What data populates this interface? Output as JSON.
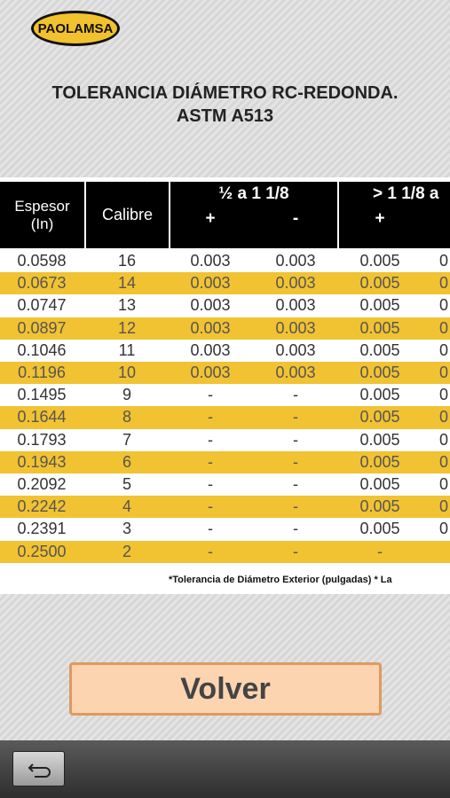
{
  "logo": "PAOLAMSA",
  "title": [
    "TOLERANCIA DIÁMETRO RC-REDONDA.",
    "ASTM A513"
  ],
  "table": {
    "headers": {
      "espesor": "Espesor\n(In)",
      "calibre": "Calibre",
      "group1": "½ a  1 1/8",
      "group1_plus": "+",
      "group1_minus": "-",
      "group2": "> 1 1/8 a",
      "group2_plus": "+"
    },
    "rows": [
      [
        "0.0598",
        "16",
        "0.003",
        "0.003",
        "0.005",
        "0"
      ],
      [
        "0.0673",
        "14",
        "0.003",
        "0.003",
        "0.005",
        "0"
      ],
      [
        "0.0747",
        "13",
        "0.003",
        "0.003",
        "0.005",
        "0"
      ],
      [
        "0.0897",
        "12",
        "0.003",
        "0.003",
        "0.005",
        "0"
      ],
      [
        "0.1046",
        "11",
        "0.003",
        "0.003",
        "0.005",
        "0"
      ],
      [
        "0.1196",
        "10",
        "0.003",
        "0.003",
        "0.005",
        "0"
      ],
      [
        "0.1495",
        "9",
        "-",
        "-",
        "0.005",
        "0"
      ],
      [
        "0.1644",
        "8",
        "-",
        "-",
        "0.005",
        "0"
      ],
      [
        "0.1793",
        "7",
        "-",
        "-",
        "0.005",
        "0"
      ],
      [
        "0.1943",
        "6",
        "-",
        "-",
        "0.005",
        "0"
      ],
      [
        "0.2092",
        "5",
        "-",
        "-",
        "0.005",
        "0"
      ],
      [
        "0.2242",
        "4",
        "-",
        "-",
        "0.005",
        "0"
      ],
      [
        "0.2391",
        "3",
        "-",
        "-",
        "0.005",
        "0"
      ],
      [
        "0.2500",
        "2",
        "-",
        "-",
        "-",
        null
      ]
    ],
    "footnote": "*Tolerancia de Diámetro Exterior (pulgadas) * La"
  },
  "button": "Volver"
}
